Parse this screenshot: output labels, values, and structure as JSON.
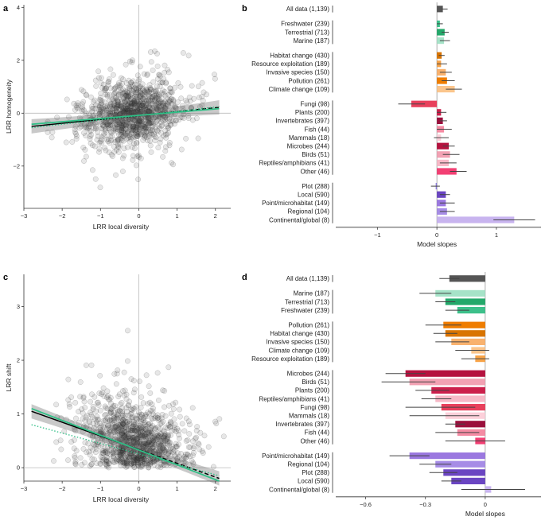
{
  "chart_data": [
    {
      "panel": "a",
      "type": "scatter",
      "title": "",
      "xlabel": "LRR local diversity",
      "ylabel": "LRR homogeneity",
      "xlim": [
        -3.0,
        2.4
      ],
      "ylim": [
        -3.6,
        4.1
      ],
      "xticks": [
        -3,
        -2,
        -1,
        0,
        1,
        2
      ],
      "yticks": [
        -2,
        0,
        2,
        4
      ],
      "n_points": 1139,
      "point_cloud": {
        "x_center": -0.15,
        "x_sd": 0.6,
        "y_center": 0.0,
        "y_sd": 0.6,
        "correlation": 0.2
      },
      "fits": [
        {
          "name": "black fit",
          "style": "solid-then-dashed",
          "color": "#000000",
          "x": [
            -2.8,
            2.1
          ],
          "y": [
            -0.5,
            0.22
          ]
        },
        {
          "name": "green fit",
          "style": "solid",
          "color": "#2fbf86",
          "x": [
            -2.8,
            2.1
          ],
          "y": [
            -0.42,
            0.17
          ]
        },
        {
          "name": "green dotted fit",
          "style": "dotted",
          "color": "#2fbf86",
          "x": [
            -2.8,
            2.1
          ],
          "y": [
            -0.55,
            0.25
          ]
        }
      ]
    },
    {
      "panel": "b",
      "type": "bar",
      "orientation": "horizontal",
      "xlabel": "Model slopes",
      "xlim": [
        -1.7,
        1.75
      ],
      "xticks": [
        -1,
        0,
        1
      ],
      "groups": [
        [
          {
            "label": "All data (1,139)",
            "value": 0.1,
            "ci": [
              0.08,
              0.18
            ],
            "color": "#555555"
          }
        ],
        [
          {
            "label": "Freshwater (239)",
            "value": 0.05,
            "ci": [
              0.0,
              0.1
            ],
            "color": "#3cc08a"
          },
          {
            "label": "Terrestrial (713)",
            "value": 0.13,
            "ci": [
              0.08,
              0.2
            ],
            "color": "#23a86a"
          },
          {
            "label": "Marine (187)",
            "value": 0.12,
            "ci": [
              0.05,
              0.22
            ],
            "color": "#a6e3c8"
          }
        ],
        [
          {
            "label": "Habitat change (430)",
            "value": 0.08,
            "ci": [
              0.03,
              0.13
            ],
            "color": "#d97400"
          },
          {
            "label": "Resource exploitation (189)",
            "value": 0.07,
            "ci": [
              0.0,
              0.17
            ],
            "color": "#f8a347"
          },
          {
            "label": "Invasive species (150)",
            "value": 0.15,
            "ci": [
              0.05,
              0.25
            ],
            "color": "#f9b26e"
          },
          {
            "label": "Pollution (261)",
            "value": 0.17,
            "ci": [
              0.08,
              0.3
            ],
            "color": "#ef7d00"
          },
          {
            "label": "Climate change (109)",
            "value": 0.3,
            "ci": [
              0.15,
              0.42
            ],
            "color": "#fbc58c"
          }
        ],
        [
          {
            "label": "Fungi (98)",
            "value": -0.43,
            "ci": [
              -0.65,
              -0.2
            ],
            "color": "#e8405c"
          },
          {
            "label": "Plants (200)",
            "value": 0.07,
            "ci": [
              0.0,
              0.16
            ],
            "color": "#cc1f4b"
          },
          {
            "label": "Invertebrates (397)",
            "value": 0.1,
            "ci": [
              0.05,
              0.17
            ],
            "color": "#9a0f3c"
          },
          {
            "label": "Fish (44)",
            "value": 0.12,
            "ci": [
              0.0,
              0.25
            ],
            "color": "#f48ba3"
          },
          {
            "label": "Mammals (18)",
            "value": 0.07,
            "ci": [
              -0.05,
              0.2
            ],
            "color": "#fcd0da"
          },
          {
            "label": "Microbes (244)",
            "value": 0.2,
            "ci": [
              0.1,
              0.3
            ],
            "color": "#b5123f"
          },
          {
            "label": "Birds (51)",
            "value": 0.22,
            "ci": [
              0.1,
              0.38
            ],
            "color": "#f2a1b3"
          },
          {
            "label": "Reptiles/amphibians (41)",
            "value": 0.2,
            "ci": [
              0.05,
              0.33
            ],
            "color": "#f7b9c7"
          },
          {
            "label": "Other (46)",
            "value": 0.33,
            "ci": [
              0.22,
              0.5
            ],
            "color": "#f23f73"
          }
        ],
        [
          {
            "label": "Plot (288)",
            "value": -0.02,
            "ci": [
              -0.1,
              0.05
            ],
            "color": "#8a7bd6"
          },
          {
            "label": "Local (590)",
            "value": 0.15,
            "ci": [
              0.05,
              0.22
            ],
            "color": "#6a45c2"
          },
          {
            "label": "Point/microhabitat (149)",
            "value": 0.15,
            "ci": [
              0.05,
              0.3
            ],
            "color": "#9b78e0"
          },
          {
            "label": "Regional (104)",
            "value": 0.17,
            "ci": [
              0.05,
              0.3
            ],
            "color": "#a68ce6"
          },
          {
            "label": "Continental/global (8)",
            "value": 1.3,
            "ci": [
              0.95,
              1.65
            ],
            "color": "#c8b4ef"
          }
        ]
      ]
    },
    {
      "panel": "c",
      "type": "scatter",
      "title": "",
      "xlabel": "LRR local diversity",
      "ylabel": "LRR shift",
      "xlim": [
        -3.0,
        2.4
      ],
      "ylim": [
        -0.25,
        3.6
      ],
      "xticks": [
        -3,
        -2,
        -1,
        0,
        1,
        2
      ],
      "yticks": [
        0,
        1,
        2,
        3
      ],
      "n_points": 1139,
      "point_cloud": {
        "x_center": -0.15,
        "x_sd": 0.6,
        "y_center": 0.45,
        "y_sd": 0.4,
        "correlation": -0.3
      },
      "fits": [
        {
          "name": "black fit",
          "style": "solid-then-dashed",
          "color": "#000000",
          "x": [
            -2.8,
            2.1
          ],
          "y": [
            1.05,
            -0.2
          ]
        },
        {
          "name": "green fit",
          "style": "solid",
          "color": "#2fbf86",
          "x": [
            -2.8,
            2.1
          ],
          "y": [
            1.1,
            -0.25
          ]
        },
        {
          "name": "green dotted fit",
          "style": "dotted",
          "color": "#2fbf86",
          "x": [
            -2.8,
            2.1
          ],
          "y": [
            0.8,
            -0.15
          ]
        }
      ]
    },
    {
      "panel": "d",
      "type": "bar",
      "orientation": "horizontal",
      "xlabel": "Model slopes",
      "xlim": [
        -0.75,
        0.28
      ],
      "xticks": [
        -0.6,
        -0.3,
        0
      ],
      "groups": [
        [
          {
            "label": "All data (1,139)",
            "value": -0.18,
            "ci": [
              -0.23,
              -0.13
            ],
            "color": "#555555"
          }
        ],
        [
          {
            "label": "Marine (187)",
            "value": -0.25,
            "ci": [
              -0.33,
              -0.17
            ],
            "color": "#a6e3c8"
          },
          {
            "label": "Terrestrial (713)",
            "value": -0.2,
            "ci": [
              -0.25,
              -0.15
            ],
            "color": "#23a86a"
          },
          {
            "label": "Freshwater (239)",
            "value": -0.14,
            "ci": [
              -0.2,
              -0.08
            ],
            "color": "#3cc08a"
          }
        ],
        [
          {
            "label": "Pollution (261)",
            "value": -0.21,
            "ci": [
              -0.3,
              -0.12
            ],
            "color": "#ef7d00"
          },
          {
            "label": "Habitat change (430)",
            "value": -0.2,
            "ci": [
              -0.26,
              -0.14
            ],
            "color": "#d97400"
          },
          {
            "label": "Invasive species (150)",
            "value": -0.17,
            "ci": [
              -0.25,
              -0.08
            ],
            "color": "#f9b26e"
          },
          {
            "label": "Climate change (109)",
            "value": -0.07,
            "ci": [
              -0.15,
              0.02
            ],
            "color": "#fbc58c"
          },
          {
            "label": "Resource exploitation (189)",
            "value": -0.05,
            "ci": [
              -0.12,
              0.02
            ],
            "color": "#f8a347"
          }
        ],
        [
          {
            "label": "Microbes (244)",
            "value": -0.4,
            "ci": [
              -0.5,
              -0.3
            ],
            "color": "#b5123f"
          },
          {
            "label": "Birds (51)",
            "value": -0.38,
            "ci": [
              -0.52,
              -0.25
            ],
            "color": "#f2a1b3"
          },
          {
            "label": "Plants (200)",
            "value": -0.27,
            "ci": [
              -0.35,
              -0.18
            ],
            "color": "#cc1f4b"
          },
          {
            "label": "Reptiles/amphibians (41)",
            "value": -0.25,
            "ci": [
              -0.32,
              -0.17
            ],
            "color": "#f7b9c7"
          },
          {
            "label": "Fungi (98)",
            "value": -0.22,
            "ci": [
              -0.4,
              -0.05
            ],
            "color": "#e8405c"
          },
          {
            "label": "Mammals (18)",
            "value": -0.2,
            "ci": [
              -0.38,
              -0.03
            ],
            "color": "#fcd0da"
          },
          {
            "label": "Invertebrates (397)",
            "value": -0.15,
            "ci": [
              -0.2,
              -0.1
            ],
            "color": "#9a0f3c"
          },
          {
            "label": "Fish (44)",
            "value": -0.14,
            "ci": [
              -0.25,
              -0.03
            ],
            "color": "#f48ba3"
          },
          {
            "label": "Other (46)",
            "value": -0.05,
            "ci": [
              -0.2,
              0.1
            ],
            "color": "#f23f73"
          }
        ],
        [
          {
            "label": "Point/microhabitat (149)",
            "value": -0.38,
            "ci": [
              -0.48,
              -0.28
            ],
            "color": "#9b78e0"
          },
          {
            "label": "Regional (104)",
            "value": -0.25,
            "ci": [
              -0.33,
              -0.17
            ],
            "color": "#a68ce6"
          },
          {
            "label": "Plot (288)",
            "value": -0.21,
            "ci": [
              -0.28,
              -0.14
            ],
            "color": "#6a45c2"
          },
          {
            "label": "Local (590)",
            "value": -0.17,
            "ci": [
              -0.22,
              -0.12
            ],
            "color": "#6a45c2"
          },
          {
            "label": "Continental/global (8)",
            "value": 0.03,
            "ci": [
              -0.12,
              0.2
            ],
            "color": "#c8b4ef"
          }
        ]
      ]
    }
  ]
}
